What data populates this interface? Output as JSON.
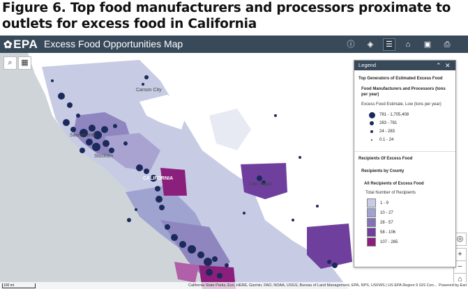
{
  "figure_caption": "Figure 6. Top food manufacturers and processors proximate to outlets for excess food in California",
  "header": {
    "logo_text": "EPA",
    "title": "Excess Food Opportunities Map",
    "tools": [
      "info-icon",
      "layers-icon",
      "legend-list-icon",
      "basemap-icon",
      "bookmark-icon",
      "print-icon"
    ]
  },
  "map": {
    "place_labels": [
      "Carson City",
      "Sacramento",
      "Stockton",
      "CALIFORNIA",
      "Las Vegas"
    ],
    "scalebar": "100 mi",
    "attribution": "California State Parks, Esri, HERE, Garmin, FAO, NOAA, USGS, Bureau of Land Management, EPA, NPS, USFWS | US EPA Region 9 GIS Cen...",
    "powered_by": "Powered by Esri",
    "colors": {
      "water": "#cfd4d8",
      "land": "#ffffff",
      "county_low": "#c7cbe4",
      "county_mid": "#8f86c0",
      "county_high": "#6f3f9e",
      "county_top": "#8a1f7c",
      "dot": "#1b2a5a"
    }
  },
  "legend": {
    "header": "Legend",
    "layer_title": "Top Generators of Estimated Excess Food",
    "sublayer_title": "Food Manufacturers and Processors (tons per year)",
    "field_label": "Excess Food Estimate, Low (tons per year)",
    "size_classes": [
      "781 - 1,705,408",
      "283 - 781",
      "24 - 283",
      "0.1 - 24"
    ],
    "recipients_title": "Recipients Of Excess Food",
    "recipients_by_county": "Recipients by County",
    "all_recipients": "All Recipients of Excess Food",
    "count_label": "Total Number of Recipients",
    "color_classes": [
      {
        "label": "1 - 9",
        "color": "#c7cbe4"
      },
      {
        "label": "10 - 27",
        "color": "#9ea3d0"
      },
      {
        "label": "28 - 57",
        "color": "#8472b8"
      },
      {
        "label": "58 - 106",
        "color": "#6f3f9e"
      },
      {
        "label": "107 - 265",
        "color": "#8a1f7c"
      }
    ]
  }
}
